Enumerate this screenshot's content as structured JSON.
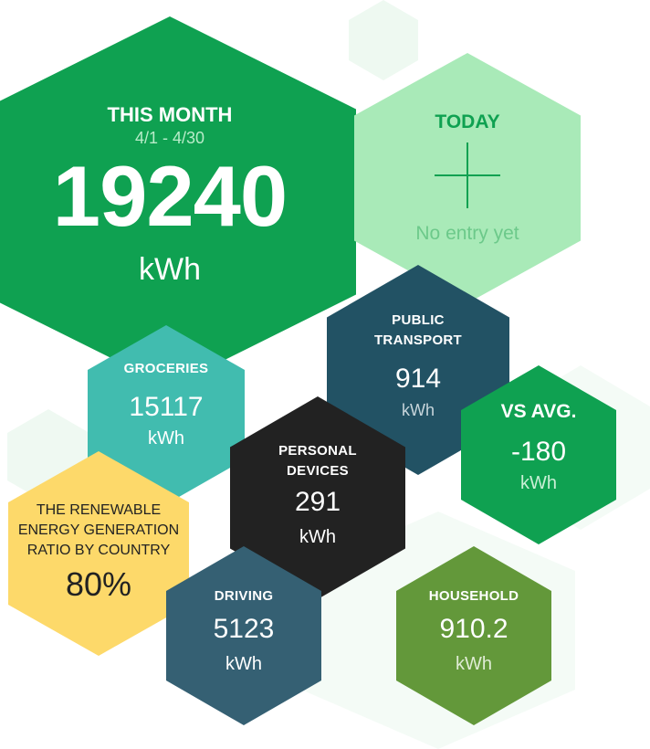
{
  "this_month": {
    "title": "THIS MONTH",
    "range": "4/1 - 4/30",
    "value": "19240",
    "unit": "kWh"
  },
  "today": {
    "title": "TODAY",
    "empty": "No entry yet"
  },
  "public_transport": {
    "title_line1": "PUBLIC",
    "title_line2": "TRANSPORT",
    "value": "914",
    "unit": "kWh"
  },
  "groceries": {
    "title": "GROCERIES",
    "value": "15117",
    "unit": "kWh"
  },
  "vs_avg": {
    "title": "VS AVG.",
    "value": "-180",
    "unit": "kWh"
  },
  "personal_devices": {
    "title_line1": "PERSONAL",
    "title_line2": "DEVICES",
    "value": "291",
    "unit": "kWh"
  },
  "renewable": {
    "line1": "THE RENEWABLE",
    "line2": "ENERGY GENERATION",
    "line3": "RATIO BY COUNTRY",
    "value": "80%"
  },
  "driving": {
    "title": "DRIVING",
    "value": "5123",
    "unit": "kWh"
  },
  "household": {
    "title": "HOUSEHOLD",
    "value": "910.2",
    "unit": "kWh"
  },
  "colors": {
    "this_month": "#0fa151",
    "today": "#a9eab8",
    "public_transport": "#225264",
    "groceries": "#41bcaf",
    "vs_avg": "#0fa151",
    "personal_devices": "#222222",
    "renewable": "#fdd96a",
    "driving": "#356073",
    "household": "#63983a"
  }
}
